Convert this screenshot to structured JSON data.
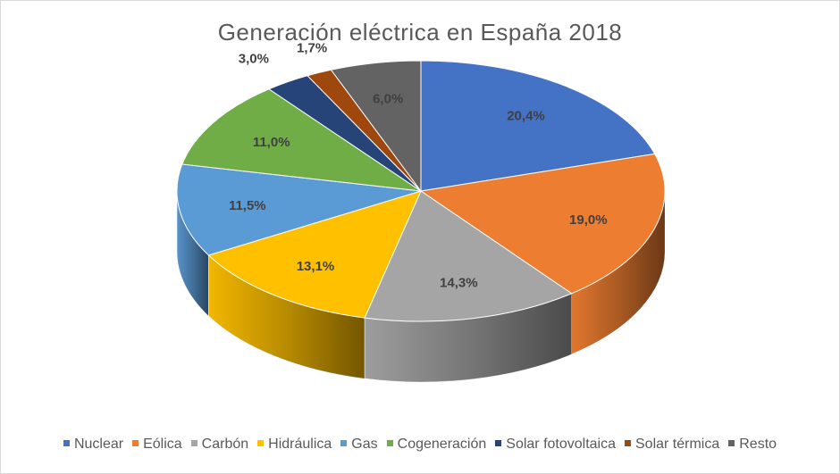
{
  "chart_data": {
    "type": "pie",
    "title": "Generación eléctrica en España 2018",
    "legend_position": "bottom",
    "style": "3d",
    "slices": [
      {
        "name": "Nuclear",
        "value": 20.4,
        "label": "20,4%",
        "color": "#4472c4"
      },
      {
        "name": "Eólica",
        "value": 19.0,
        "label": "19,0%",
        "color": "#ed7d31"
      },
      {
        "name": "Carbón",
        "value": 14.3,
        "label": "14,3%",
        "color": "#a5a5a5"
      },
      {
        "name": "Hidráulica",
        "value": 13.1,
        "label": "13,1%",
        "color": "#ffc000"
      },
      {
        "name": "Gas",
        "value": 11.5,
        "label": "11,5%",
        "color": "#5b9bd5"
      },
      {
        "name": "Cogeneración",
        "value": 11.0,
        "label": "11,0%",
        "color": "#70ad47"
      },
      {
        "name": "Solar fotovoltaica",
        "value": 3.0,
        "label": "3,0%",
        "color": "#264478"
      },
      {
        "name": "Solar térmica",
        "value": 1.7,
        "label": "1,7%",
        "color": "#9e480e"
      },
      {
        "name": "Resto",
        "value": 6.0,
        "label": "6,0%",
        "color": "#636363"
      }
    ]
  }
}
